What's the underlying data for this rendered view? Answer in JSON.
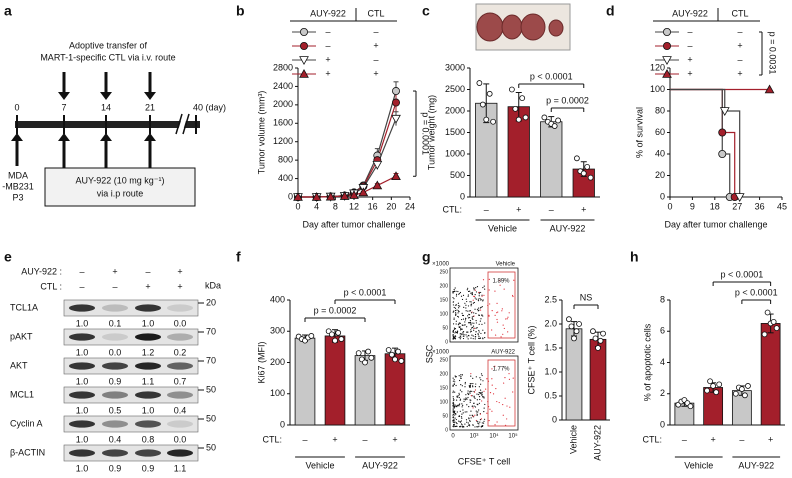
{
  "diagram": {
    "panel": "a",
    "top_text": [
      "Adoptive transfer of",
      "MART-1-specific CTL via i.v. route"
    ],
    "day_labels": [
      "0",
      "7",
      "14",
      "21",
      "40 (day)"
    ],
    "cell_line": [
      "MDA",
      "-MB231",
      "P3"
    ],
    "treatment": [
      "AUY-922 (10 mg kg⁻¹)",
      "via i.p route"
    ]
  },
  "chart_data": [
    {
      "panel": "b",
      "type": "line",
      "xlabel": "Day after tumor challenge",
      "ylabel": "Tumor volume (mm³)",
      "x": [
        0,
        4,
        7,
        10,
        12,
        14,
        17,
        21
      ],
      "xlim": [
        0,
        24
      ],
      "xticks": [
        0,
        4,
        8,
        12,
        16,
        20,
        24
      ],
      "ylim": [
        0,
        2800
      ],
      "yticks": [
        0,
        400,
        800,
        1200,
        1600,
        2000,
        2400,
        2800
      ],
      "legend_header": [
        "AUY-922",
        "CTL"
      ],
      "series": [
        {
          "signs": [
            "–",
            "–"
          ],
          "marker": "circle",
          "color": "#c8c8c8",
          "line_color": "#444444",
          "values": [
            0,
            0,
            10,
            30,
            100,
            250,
            900,
            2300
          ],
          "errors": [
            0,
            0,
            5,
            10,
            20,
            50,
            150,
            200
          ]
        },
        {
          "signs": [
            "–",
            "+"
          ],
          "marker": "circle",
          "color": "#a31f2b",
          "line_color": "#a31f2b",
          "values": [
            0,
            0,
            10,
            30,
            90,
            230,
            800,
            2050
          ],
          "errors": [
            0,
            0,
            5,
            10,
            20,
            40,
            120,
            200
          ]
        },
        {
          "signs": [
            "+",
            "–"
          ],
          "marker": "triangle-down",
          "color": "#ffffff",
          "line_color": "#444444",
          "values": [
            0,
            0,
            10,
            25,
            80,
            200,
            700,
            1700
          ],
          "errors": [
            0,
            0,
            5,
            10,
            15,
            40,
            100,
            150
          ]
        },
        {
          "signs": [
            "+",
            "+"
          ],
          "marker": "triangle-up",
          "color": "#a31f2b",
          "line_color": "#a31f2b",
          "values": [
            0,
            0,
            5,
            20,
            40,
            100,
            250,
            450
          ],
          "errors": [
            0,
            0,
            0,
            5,
            10,
            20,
            40,
            60
          ]
        }
      ],
      "annotation": "p = 0.0001"
    },
    {
      "panel": "c",
      "type": "bar",
      "ylabel": "Tumor weight (mg)",
      "ylim": [
        0,
        3000
      ],
      "yticks": [
        0,
        500,
        1000,
        1500,
        2000,
        2500,
        3000
      ],
      "colors": [
        "#c8c8c8",
        "#a31f2b",
        "#c8c8c8",
        "#a31f2b"
      ],
      "values": [
        2180,
        2100,
        1750,
        650
      ],
      "errors": [
        450,
        330,
        120,
        170
      ],
      "points": [
        [
          2650,
          2150,
          1800,
          2400,
          1750
        ],
        [
          2500,
          2050,
          1800,
          2300,
          1850
        ],
        [
          1850,
          1750,
          1700,
          1650,
          1780
        ],
        [
          900,
          600,
          550,
          700,
          450
        ]
      ],
      "signs_label": "CTL:",
      "signs": [
        "–",
        "+",
        "–",
        "+"
      ],
      "groups": [
        "Vehicle",
        "AUY-922"
      ],
      "annotations": [
        "p < 0.0001",
        "p = 0.0002"
      ]
    },
    {
      "panel": "d",
      "type": "step",
      "xlabel": "Day after tumor challenge",
      "ylabel": "% of survival",
      "xlim": [
        0,
        45
      ],
      "xticks": [
        0,
        9,
        18,
        27,
        36,
        45
      ],
      "ylim": [
        0,
        120
      ],
      "yticks": [
        0,
        20,
        40,
        60,
        80,
        100,
        120
      ],
      "legend_header": [
        "AUY-922",
        "CTL"
      ],
      "series": [
        {
          "signs": [
            "–",
            "–"
          ],
          "marker": "circle",
          "color": "#c8c8c8",
          "line_color": "#444444",
          "x": [
            0,
            21,
            24
          ],
          "values": [
            100,
            40,
            0
          ]
        },
        {
          "signs": [
            "–",
            "+"
          ],
          "marker": "circle",
          "color": "#a31f2b",
          "line_color": "#a31f2b",
          "x": [
            0,
            21,
            26
          ],
          "values": [
            100,
            60,
            0
          ]
        },
        {
          "signs": [
            "+",
            "–"
          ],
          "marker": "triangle-down",
          "color": "#ffffff",
          "line_color": "#444444",
          "x": [
            0,
            22,
            28
          ],
          "values": [
            100,
            80,
            0
          ]
        },
        {
          "signs": [
            "+",
            "+"
          ],
          "marker": "triangle-up",
          "color": "#a31f2b",
          "line_color": "#a31f2b",
          "x": [
            0,
            40
          ],
          "values": [
            100,
            100
          ]
        }
      ],
      "annotation": "p = 0.0031"
    },
    {
      "panel": "f",
      "type": "bar",
      "ylabel": "Ki67 (MFI)",
      "ylim": [
        0,
        400
      ],
      "yticks": [
        0,
        100,
        200,
        300,
        400
      ],
      "colors": [
        "#c8c8c8",
        "#a31f2b",
        "#c8c8c8",
        "#a31f2b"
      ],
      "values": [
        278,
        285,
        222,
        228
      ],
      "errors": [
        10,
        20,
        15,
        18
      ],
      "points": [
        [
          283,
          275,
          270,
          280,
          285
        ],
        [
          300,
          290,
          270,
          295,
          275
        ],
        [
          230,
          210,
          200,
          235,
          215
        ],
        [
          240,
          225,
          210,
          235,
          205
        ]
      ],
      "signs_label": "CTL:",
      "signs": [
        "–",
        "+",
        "–",
        "+"
      ],
      "groups": [
        "Vehicle",
        "AUY-922"
      ],
      "annotations": [
        "p < 0.0001",
        "p = 0.0002"
      ]
    },
    {
      "type": "bar",
      "ylabel": "CFSE⁺ T cell (%)",
      "ylim": [
        0,
        2.5
      ],
      "yticks": [
        0,
        0.5,
        {
          "value": 1,
          "label": "1.0"
        },
        1.5,
        {
          "value": 2,
          "label": "2.0"
        },
        2.5
      ],
      "categories": [
        "Vehicle",
        "AUY-922"
      ],
      "colors": [
        "#c8c8c8",
        "#a31f2b"
      ],
      "values": [
        1.9,
        1.68
      ],
      "errors": [
        0.15,
        0.15
      ],
      "points": [
        [
          2.1,
          1.95,
          1.7,
          1.85,
          2.0
        ],
        [
          1.85,
          1.7,
          1.5,
          1.65,
          1.8
        ]
      ],
      "annotations": [
        "NS"
      ]
    },
    {
      "panel": "h",
      "type": "bar",
      "ylabel": "% of apoptotic cells",
      "ylim": [
        0,
        8
      ],
      "yticks": [
        0,
        2,
        4,
        6,
        8
      ],
      "colors": [
        "#c8c8c8",
        "#a31f2b",
        "#c8c8c8",
        "#a31f2b"
      ],
      "values": [
        1.4,
        2.4,
        2.2,
        6.5
      ],
      "errors": [
        0.2,
        0.3,
        0.3,
        0.6
      ],
      "points": [
        [
          1.3,
          1.5,
          1.6,
          1.4,
          1.2
        ],
        [
          2.2,
          2.8,
          2.5,
          2.1,
          2.6
        ],
        [
          2.0,
          2.4,
          2.3,
          1.9,
          2.5
        ],
        [
          5.8,
          7.2,
          6.5,
          6.6,
          6.2
        ]
      ],
      "signs_label": "CTL:",
      "signs": [
        "–",
        "+",
        "–",
        "+"
      ],
      "groups": [
        "Vehicle",
        "AUY-922"
      ],
      "annotations": [
        "p < 0.0001",
        "p < 0.0001"
      ]
    }
  ],
  "blot": {
    "panel": "e",
    "kda_label": "kDa",
    "header": [
      {
        "label": "AUY-922 :",
        "signs": [
          "–",
          "+",
          "–",
          "+"
        ]
      },
      {
        "label": "CTL :",
        "signs": [
          "–",
          "–",
          "+",
          "+"
        ]
      }
    ],
    "rows": [
      {
        "name": "TCL1A",
        "kda": 20,
        "quant": [
          "1.0",
          "0.1",
          "1.0",
          "0.0"
        ]
      },
      {
        "name": "pAKT",
        "kda": 70,
        "quant": [
          "1.0",
          "0.0",
          "1.2",
          "0.2"
        ]
      },
      {
        "name": "AKT",
        "kda": 70,
        "quant": [
          "1.0",
          "0.9",
          "1.1",
          "0.7"
        ]
      },
      {
        "name": "MCL1",
        "kda": 50,
        "quant": [
          "1.0",
          "0.5",
          "1.0",
          "0.4"
        ]
      },
      {
        "name": "Cyclin A",
        "kda": 50,
        "quant": [
          "1.0",
          "0.4",
          "0.8",
          "0.0"
        ]
      },
      {
        "name": "β-ACTIN",
        "kda": 50,
        "quant": [
          "1.0",
          "0.9",
          "0.9",
          "1.1"
        ]
      }
    ]
  },
  "flow": {
    "panel": "g",
    "scale_label": "×1000",
    "ylabel": "SSC",
    "xlabel": "CFSE⁺ T cell",
    "plots": [
      {
        "title": "Vehicle",
        "gate": "1.89%"
      },
      {
        "title": "AUY-922",
        "gate": "1.77%"
      }
    ],
    "yticks": [
      "0",
      "50",
      "100",
      "150",
      "200",
      "250"
    ],
    "xticks": [
      "0",
      "10³",
      "10⁴",
      "10⁵"
    ]
  }
}
